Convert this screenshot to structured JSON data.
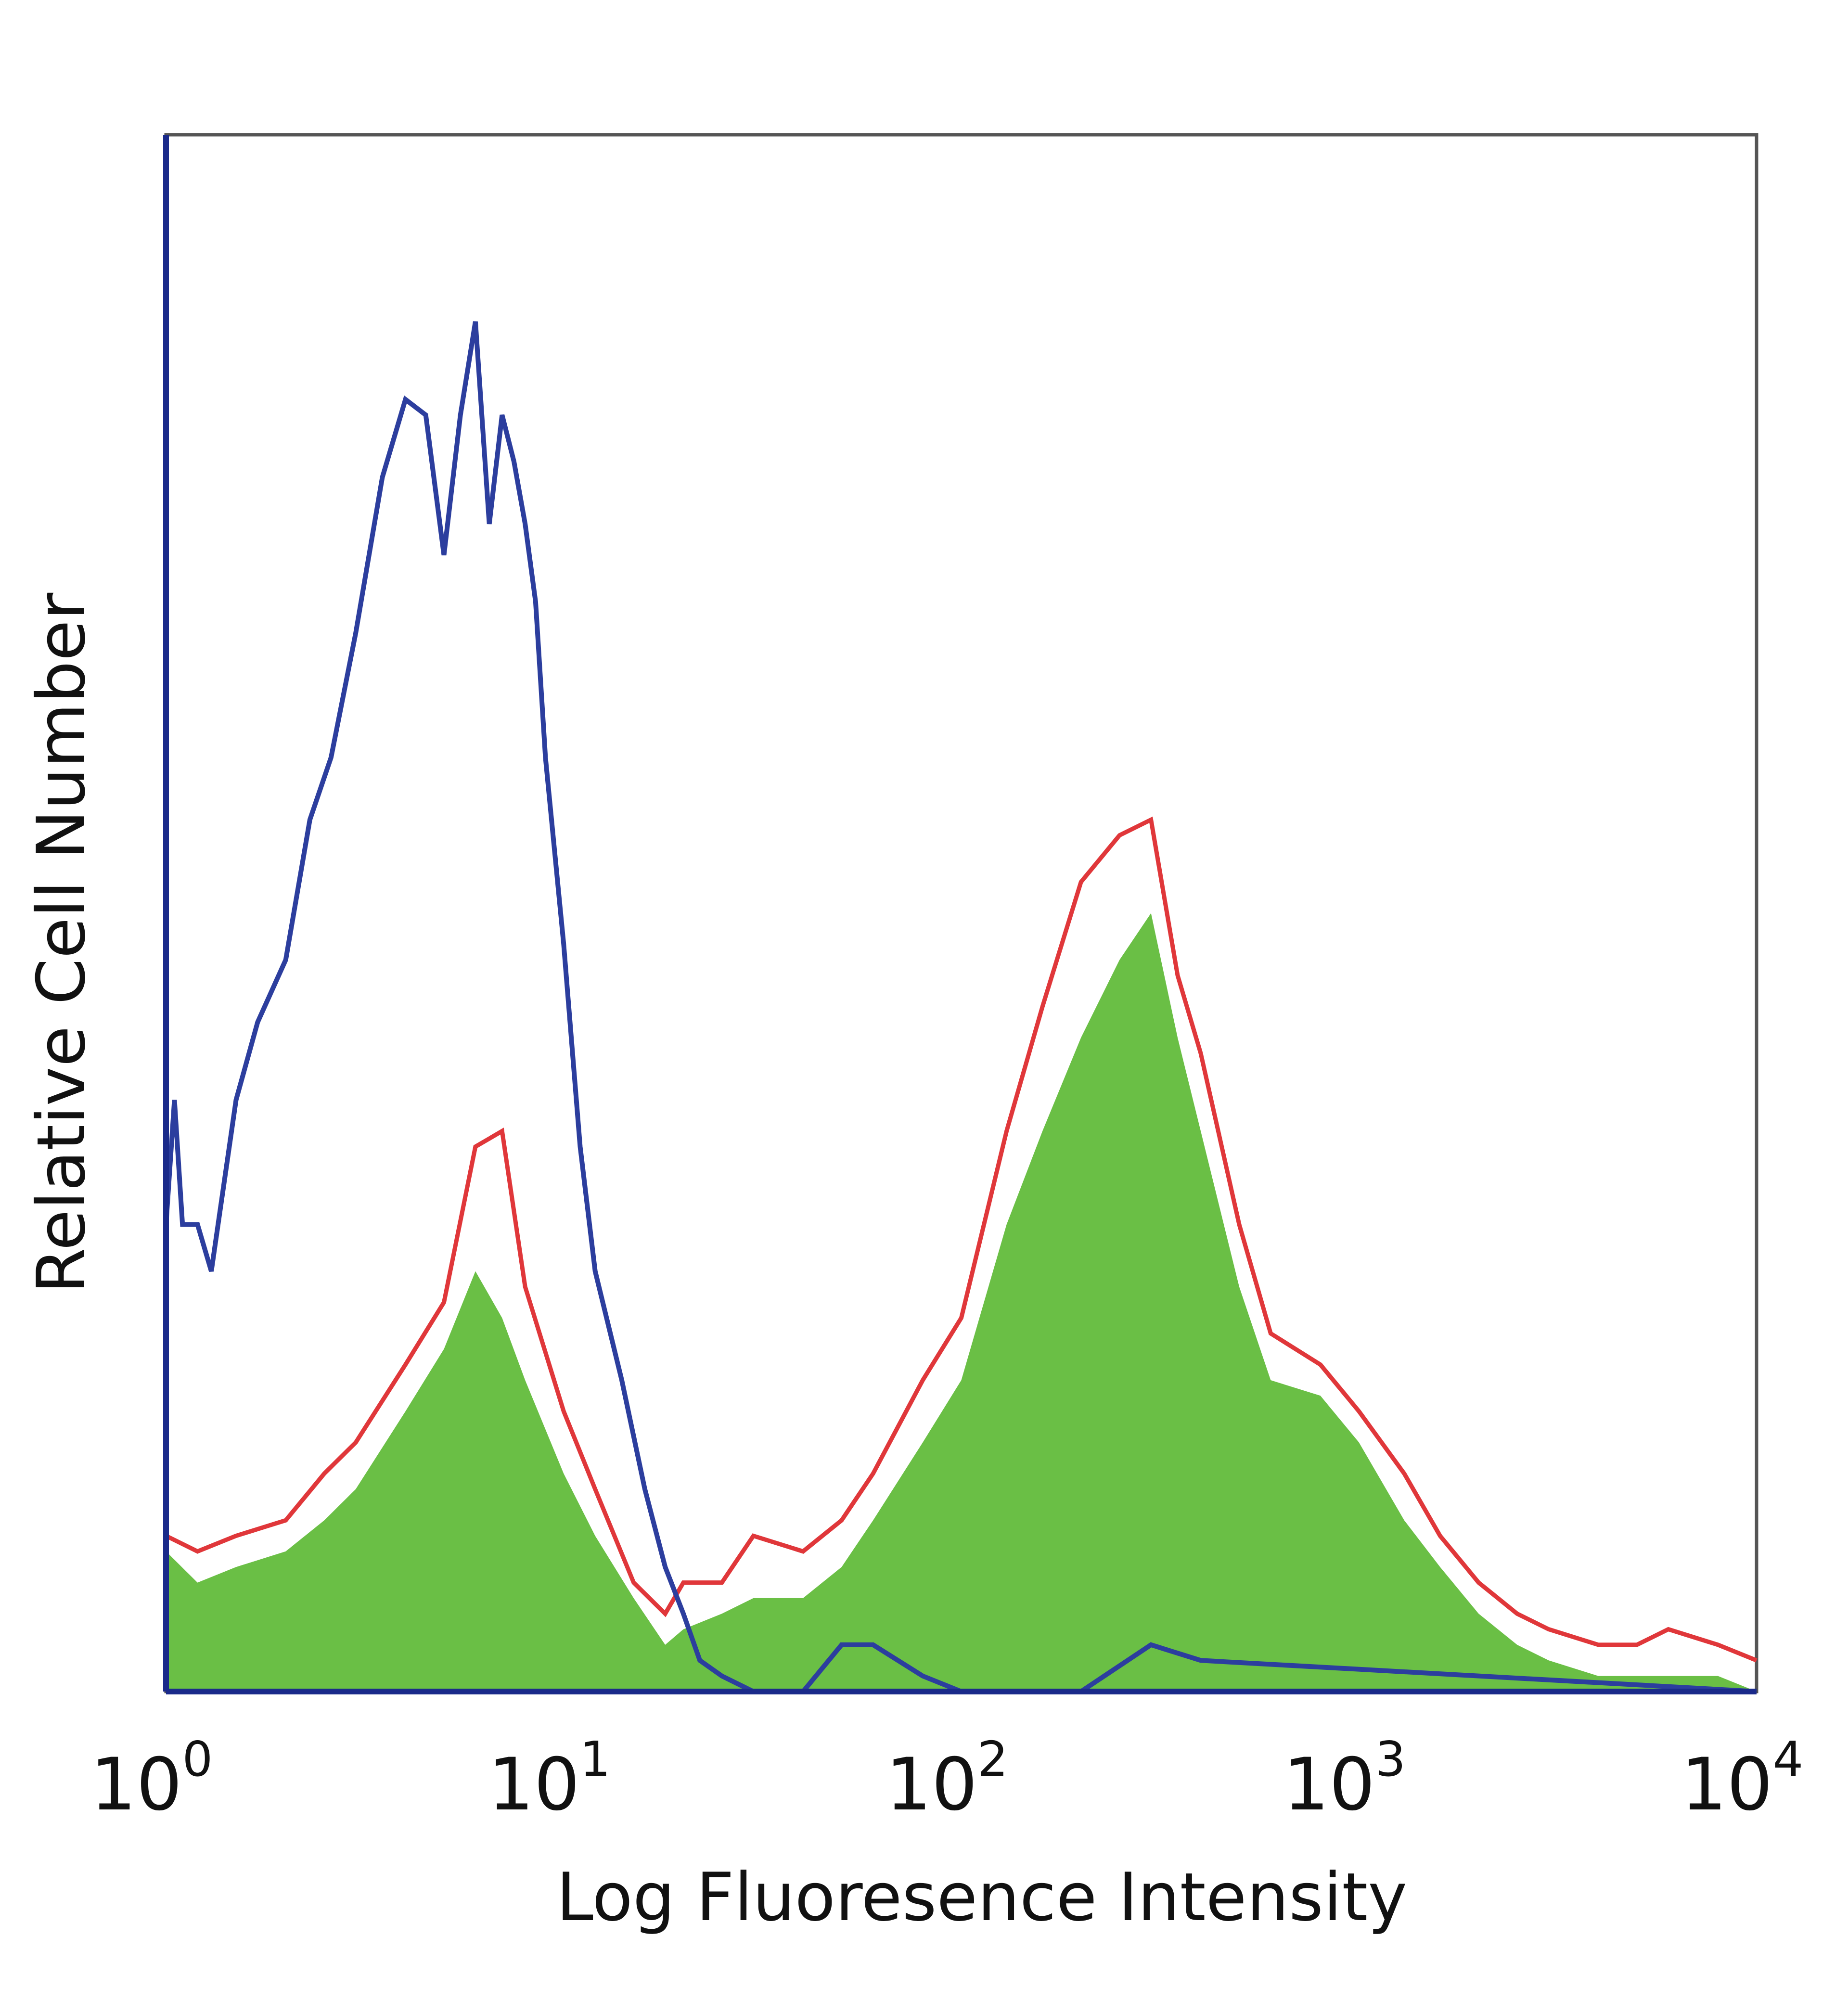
{
  "chart_data": {
    "type": "area",
    "title": "",
    "xlabel": "Log Fluoresence Intensity",
    "ylabel": "Relative Cell Number",
    "x_scale": "log",
    "xlim": [
      1,
      10000
    ],
    "ylim": [
      0,
      1
    ],
    "x_ticks": [
      {
        "base": "10",
        "exp": "0"
      },
      {
        "base": "10",
        "exp": "1"
      },
      {
        "base": "10",
        "exp": "2"
      },
      {
        "base": "10",
        "exp": "3"
      },
      {
        "base": "10",
        "exp": "4"
      }
    ],
    "grid": false,
    "legend": "none",
    "series": [
      {
        "style": "filled",
        "color": "#6abf45",
        "x": [
          1,
          1.2,
          1.5,
          2,
          2.5,
          3,
          4,
          5,
          6,
          7,
          8,
          10,
          12,
          15,
          18,
          20,
          25,
          30,
          40,
          50,
          60,
          80,
          100,
          130,
          160,
          200,
          250,
          300,
          350,
          400,
          500,
          600,
          800,
          1000,
          1300,
          1600,
          2000,
          2500,
          3000,
          4000,
          5000,
          6000,
          8000,
          10000
        ],
        "y": [
          0.09,
          0.07,
          0.08,
          0.09,
          0.11,
          0.13,
          0.18,
          0.22,
          0.27,
          0.24,
          0.2,
          0.14,
          0.1,
          0.06,
          0.03,
          0.04,
          0.05,
          0.06,
          0.06,
          0.08,
          0.11,
          0.16,
          0.2,
          0.3,
          0.36,
          0.42,
          0.47,
          0.5,
          0.42,
          0.36,
          0.26,
          0.2,
          0.19,
          0.16,
          0.11,
          0.08,
          0.05,
          0.03,
          0.02,
          0.01,
          0.01,
          0.01,
          0.01,
          0
        ]
      },
      {
        "style": "line",
        "color": "#e0373a",
        "x": [
          1,
          1.2,
          1.5,
          2,
          2.5,
          3,
          4,
          5,
          6,
          7,
          8,
          10,
          12,
          15,
          18,
          20,
          25,
          30,
          40,
          50,
          60,
          80,
          100,
          130,
          160,
          200,
          250,
          300,
          350,
          400,
          500,
          600,
          800,
          1000,
          1300,
          1600,
          2000,
          2500,
          3000,
          4000,
          5000,
          6000,
          8000,
          10000
        ],
        "y": [
          0.1,
          0.09,
          0.1,
          0.11,
          0.14,
          0.16,
          0.21,
          0.25,
          0.35,
          0.36,
          0.26,
          0.18,
          0.13,
          0.07,
          0.05,
          0.07,
          0.07,
          0.1,
          0.09,
          0.11,
          0.14,
          0.2,
          0.24,
          0.36,
          0.44,
          0.52,
          0.55,
          0.56,
          0.46,
          0.41,
          0.3,
          0.23,
          0.21,
          0.18,
          0.14,
          0.1,
          0.07,
          0.05,
          0.04,
          0.03,
          0.03,
          0.04,
          0.03,
          0.02
        ]
      },
      {
        "style": "line",
        "color": "#2c3e9e",
        "x": [
          1,
          1.05,
          1.1,
          1.2,
          1.3,
          1.5,
          1.7,
          2,
          2.3,
          2.6,
          3,
          3.5,
          4,
          4.5,
          5,
          5.5,
          6,
          6.5,
          7,
          7.5,
          8,
          8.5,
          9,
          10,
          11,
          12,
          14,
          16,
          18,
          20,
          22,
          25,
          30,
          40,
          50,
          60,
          80,
          100,
          200,
          300,
          400,
          10000
        ],
        "y": [
          0.3,
          0.38,
          0.3,
          0.3,
          0.27,
          0.38,
          0.43,
          0.47,
          0.56,
          0.6,
          0.68,
          0.78,
          0.83,
          0.82,
          0.73,
          0.82,
          0.88,
          0.75,
          0.82,
          0.79,
          0.75,
          0.7,
          0.6,
          0.48,
          0.35,
          0.27,
          0.2,
          0.13,
          0.08,
          0.05,
          0.02,
          0.01,
          0,
          0,
          0.03,
          0.03,
          0.01,
          0,
          0,
          0.03,
          0.02,
          0
        ]
      }
    ]
  }
}
